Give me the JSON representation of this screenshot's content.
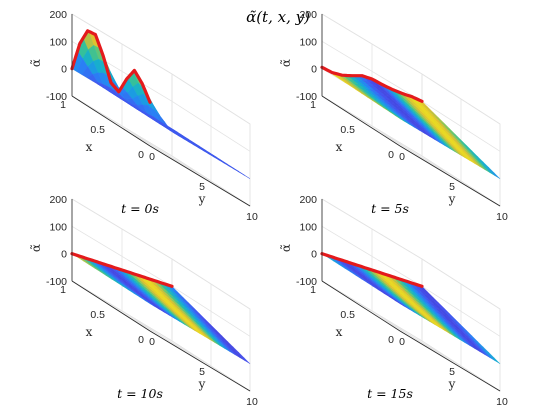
{
  "figure_title": "α̃(t, x, y)",
  "chart_data": [
    {
      "type": "surface",
      "title": "t = 0s",
      "xlabel": "x",
      "ylabel": "y",
      "zlabel": "α̃",
      "xlim": [
        0,
        1
      ],
      "ylim": [
        0,
        10
      ],
      "zlim": [
        -100,
        200
      ],
      "xticks": [
        "0",
        "0.5",
        "1"
      ],
      "yticks": [
        "0",
        "5",
        "10"
      ],
      "zticks": [
        "-100",
        "0",
        "100",
        "200"
      ],
      "grid": true,
      "colormap": "parula",
      "edge_line": {
        "color": "#e41a1c",
        "x": 1,
        "y": 0,
        "t_values": [
          0,
          0.1,
          0.2,
          0.3,
          0.4,
          0.5,
          0.6,
          0.7,
          0.8,
          0.9,
          1.0
        ],
        "z_values": [
          0,
          110,
          175,
          180,
          120,
          40,
          25,
          90,
          140,
          110,
          60
        ]
      }
    },
    {
      "type": "surface",
      "title": "t = 5s",
      "xlabel": "x",
      "ylabel": "y",
      "zlabel": "α̃",
      "xlim": [
        0,
        1
      ],
      "ylim": [
        0,
        10
      ],
      "zlim": [
        -100,
        200
      ],
      "xticks": [
        "0",
        "0.5",
        "1"
      ],
      "yticks": [
        "0",
        "5",
        "10"
      ],
      "zticks": [
        "-100",
        "0",
        "100",
        "200"
      ],
      "grid": true,
      "colormap": "parula",
      "edge_line": {
        "color": "#e41a1c",
        "y_values": [
          0,
          1,
          2,
          3,
          4,
          5,
          6,
          7,
          8,
          9,
          10
        ],
        "z_values": [
          5,
          8,
          20,
          40,
          62,
          72,
          74,
          78,
          85,
          95,
          100
        ]
      }
    },
    {
      "type": "surface",
      "title": "t = 10s",
      "xlabel": "x",
      "ylabel": "y",
      "zlabel": "α̃",
      "xlim": [
        0,
        1
      ],
      "ylim": [
        0,
        10
      ],
      "zlim": [
        -100,
        200
      ],
      "xticks": [
        "0",
        "0.5",
        "1"
      ],
      "yticks": [
        "0",
        "5",
        "10"
      ],
      "zticks": [
        "-100",
        "0",
        "100",
        "200"
      ],
      "grid": true,
      "colormap": "parula",
      "edge_line": {
        "color": "#e41a1c",
        "y_values": [
          0,
          10
        ],
        "z_values": [
          0,
          100
        ]
      }
    },
    {
      "type": "surface",
      "title": "t = 15s",
      "xlabel": "x",
      "ylabel": "y",
      "zlabel": "α̃",
      "xlim": [
        0,
        1
      ],
      "ylim": [
        0,
        10
      ],
      "zlim": [
        -100,
        200
      ],
      "xticks": [
        "0",
        "0.5",
        "1"
      ],
      "yticks": [
        "0",
        "5",
        "10"
      ],
      "zticks": [
        "-100",
        "0",
        "100",
        "200"
      ],
      "grid": true,
      "colormap": "parula",
      "edge_line": {
        "color": "#e41a1c",
        "y_values": [
          0,
          10
        ],
        "z_values": [
          0,
          100
        ]
      }
    }
  ]
}
